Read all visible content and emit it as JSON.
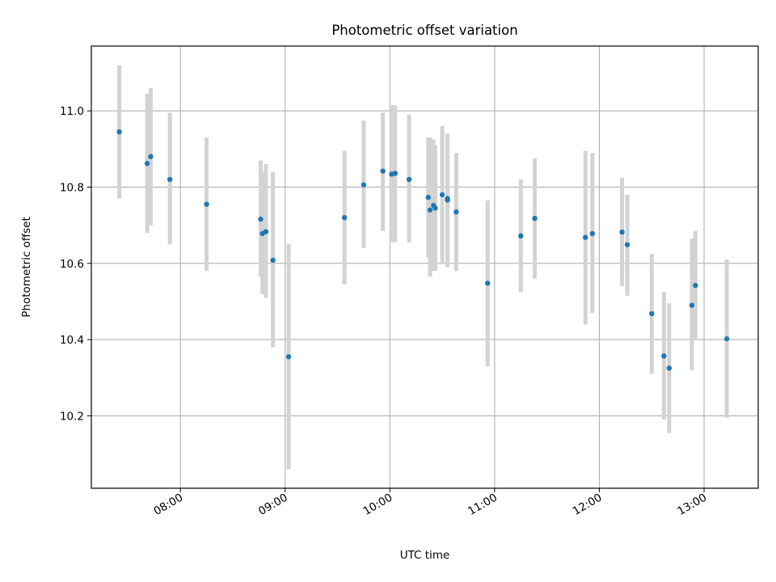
{
  "chart_data": {
    "type": "scatter",
    "title": "Photometric offset variation",
    "xlabel": "UTC time",
    "ylabel": "Photometric offset",
    "x_ticks": [
      "08:00",
      "09:00",
      "10:00",
      "11:00",
      "12:00",
      "13:00"
    ],
    "y_ticks": [
      "10.2",
      "10.4",
      "10.6",
      "10.8",
      "11.0"
    ],
    "x_range": [
      "07:09",
      "13:31"
    ],
    "ylim": [
      10.01,
      11.17
    ],
    "grid": true,
    "error_bar_color": "#d3d3d3",
    "marker_color": "#1f77b4",
    "points": [
      {
        "t": "07:25",
        "y": 10.945,
        "lo": 10.77,
        "hi": 11.12
      },
      {
        "t": "07:41",
        "y": 10.862,
        "lo": 10.68,
        "hi": 11.045
      },
      {
        "t": "07:43",
        "y": 10.88,
        "lo": 10.7,
        "hi": 11.06
      },
      {
        "t": "07:54",
        "y": 10.82,
        "lo": 10.65,
        "hi": 10.995
      },
      {
        "t": "08:15",
        "y": 10.755,
        "lo": 10.58,
        "hi": 10.93
      },
      {
        "t": "08:46",
        "y": 10.716,
        "lo": 10.565,
        "hi": 10.87
      },
      {
        "t": "08:47",
        "y": 10.678,
        "lo": 10.52,
        "hi": 10.84
      },
      {
        "t": "08:49",
        "y": 10.683,
        "lo": 10.51,
        "hi": 10.86
      },
      {
        "t": "08:53",
        "y": 10.608,
        "lo": 10.38,
        "hi": 10.84
      },
      {
        "t": "09:02",
        "y": 10.355,
        "lo": 10.06,
        "hi": 10.65
      },
      {
        "t": "09:34",
        "y": 10.72,
        "lo": 10.545,
        "hi": 10.895
      },
      {
        "t": "09:45",
        "y": 10.806,
        "lo": 10.64,
        "hi": 10.975
      },
      {
        "t": "09:56",
        "y": 10.842,
        "lo": 10.685,
        "hi": 10.995
      },
      {
        "t": "10:01",
        "y": 10.834,
        "lo": 10.655,
        "hi": 11.015
      },
      {
        "t": "10:03",
        "y": 10.836,
        "lo": 10.655,
        "hi": 11.015
      },
      {
        "t": "10:11",
        "y": 10.82,
        "lo": 10.655,
        "hi": 10.99
      },
      {
        "t": "10:22",
        "y": 10.773,
        "lo": 10.615,
        "hi": 10.93
      },
      {
        "t": "10:23",
        "y": 10.74,
        "lo": 10.565,
        "hi": 10.93
      },
      {
        "t": "10:25",
        "y": 10.752,
        "lo": 10.58,
        "hi": 10.925
      },
      {
        "t": "10:26",
        "y": 10.745,
        "lo": 10.58,
        "hi": 10.91
      },
      {
        "t": "10:30",
        "y": 10.78,
        "lo": 10.6,
        "hi": 10.96
      },
      {
        "t": "10:33",
        "y": 10.77,
        "lo": 10.595,
        "hi": 10.94
      },
      {
        "t": "10:33",
        "y": 10.766,
        "lo": 10.59,
        "hi": 10.94
      },
      {
        "t": "10:38",
        "y": 10.735,
        "lo": 10.58,
        "hi": 10.89
      },
      {
        "t": "10:56",
        "y": 10.548,
        "lo": 10.33,
        "hi": 10.765
      },
      {
        "t": "11:15",
        "y": 10.672,
        "lo": 10.525,
        "hi": 10.82
      },
      {
        "t": "11:23",
        "y": 10.718,
        "lo": 10.56,
        "hi": 10.875
      },
      {
        "t": "11:52",
        "y": 10.668,
        "lo": 10.44,
        "hi": 10.895
      },
      {
        "t": "11:56",
        "y": 10.678,
        "lo": 10.47,
        "hi": 10.89
      },
      {
        "t": "12:13",
        "y": 10.682,
        "lo": 10.54,
        "hi": 10.825
      },
      {
        "t": "12:16",
        "y": 10.649,
        "lo": 10.515,
        "hi": 10.78
      },
      {
        "t": "12:30",
        "y": 10.468,
        "lo": 10.31,
        "hi": 10.625
      },
      {
        "t": "12:37",
        "y": 10.357,
        "lo": 10.19,
        "hi": 10.525
      },
      {
        "t": "12:40",
        "y": 10.325,
        "lo": 10.155,
        "hi": 10.495
      },
      {
        "t": "12:53",
        "y": 10.49,
        "lo": 10.32,
        "hi": 10.665
      },
      {
        "t": "12:55",
        "y": 10.542,
        "lo": 10.4,
        "hi": 10.685
      },
      {
        "t": "13:13",
        "y": 10.402,
        "lo": 10.195,
        "hi": 10.61
      }
    ]
  }
}
